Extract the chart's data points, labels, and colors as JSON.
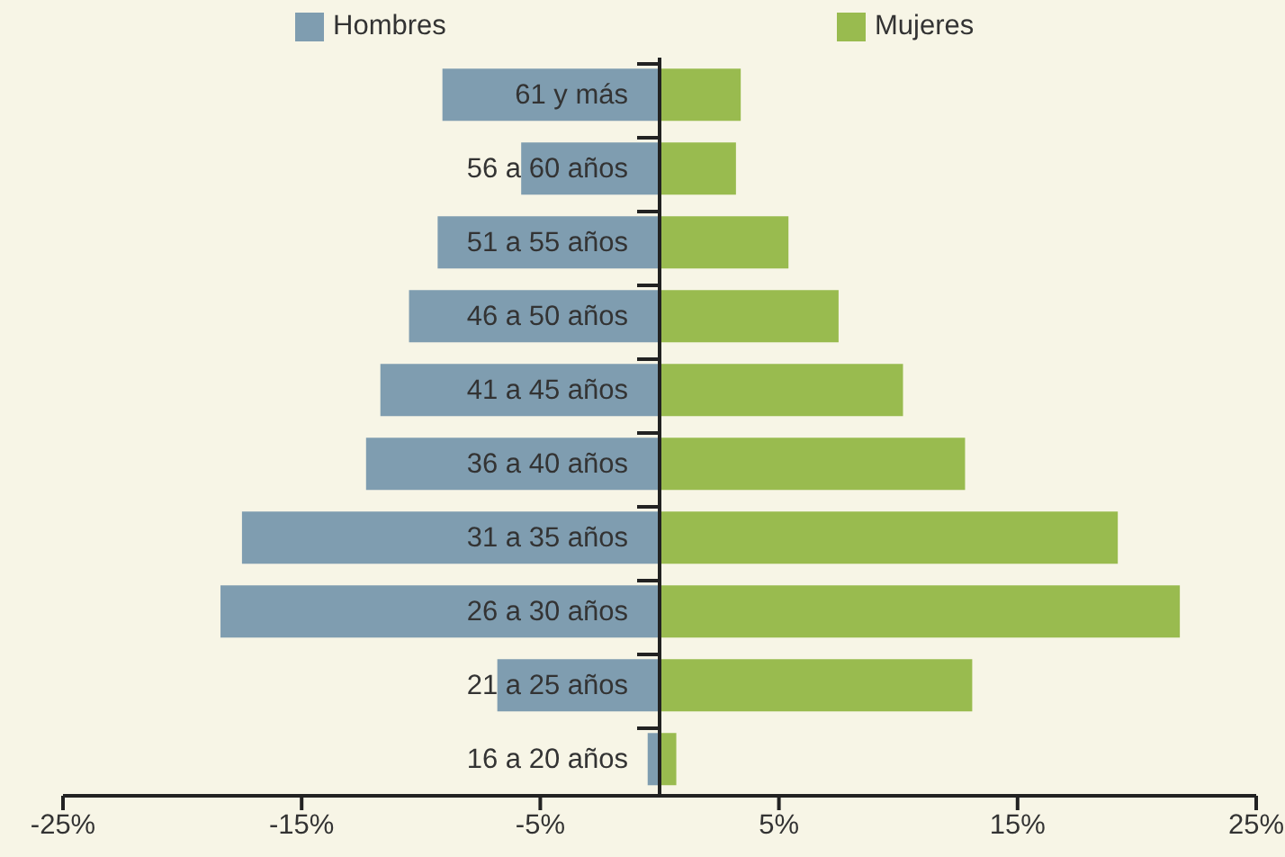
{
  "chart_data": {
    "type": "bar",
    "orientation": "horizontal",
    "stacked": true,
    "categories": [
      "61 y más",
      "56 a 60 años",
      "51 a 55 años",
      "46 a 50 años",
      "41 a 45 años",
      "36 a 40 años",
      "31 a 35 años",
      "26 a 30 años",
      "21 a 25 años",
      "16 a 20 años"
    ],
    "series": [
      {
        "name": "Hombres",
        "color": "#7f9db0",
        "values": [
          -9.1,
          -5.8,
          -9.3,
          -10.5,
          -11.7,
          -12.3,
          -17.5,
          -18.4,
          -6.8,
          -0.5
        ]
      },
      {
        "name": "Mujeres",
        "color": "#99bb4f",
        "values": [
          3.4,
          3.2,
          5.4,
          7.5,
          10.2,
          12.8,
          19.2,
          21.8,
          13.1,
          0.7
        ]
      }
    ],
    "xlim": [
      -25,
      25
    ],
    "xticks": [
      {
        "value": -25,
        "label": "-25%"
      },
      {
        "value": -15,
        "label": "-15%"
      },
      {
        "value": -5,
        "label": "-5%"
      },
      {
        "value": 5,
        "label": "5%"
      },
      {
        "value": 15,
        "label": "15%"
      },
      {
        "value": 25,
        "label": "25%"
      }
    ],
    "grid": false,
    "legend": "top"
  }
}
